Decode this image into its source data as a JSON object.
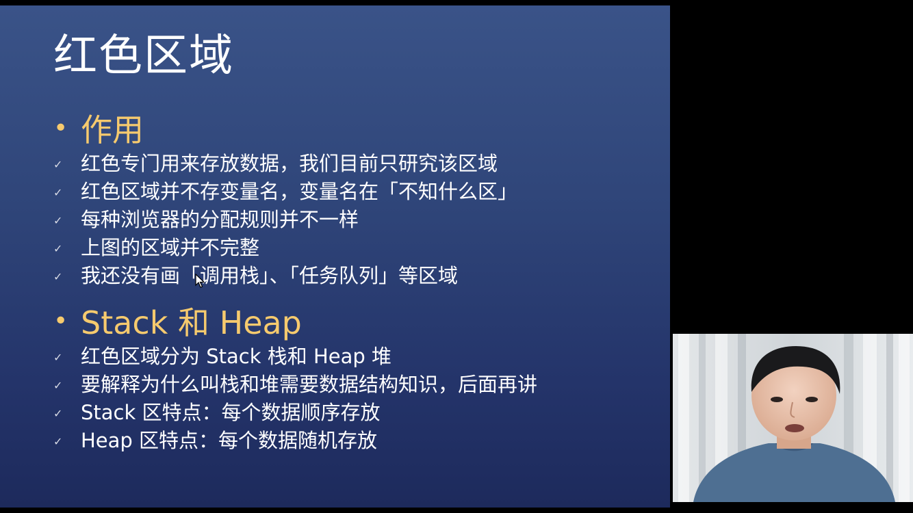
{
  "slide": {
    "title": "红色区域",
    "sections": [
      {
        "heading": "作用",
        "items": [
          "红色专门用来存放数据，我们目前只研究该区域",
          "红色区域并不存变量名，变量名在「不知什么区」",
          "每种浏览器的分配规则并不一样",
          "上图的区域并不完整",
          "我还没有画「调用栈」、「任务队列」等区域"
        ]
      },
      {
        "heading": "Stack 和 Heap",
        "items": [
          "红色区域分为 Stack 栈和 Heap 堆",
          "要解释为什么叫栈和堆需要数据结构知识，后面再讲",
          "Stack 区特点：每个数据顺序存放",
          "Heap 区特点：每个数据随机存放"
        ]
      }
    ]
  },
  "colors": {
    "heading": "#f6ca6e",
    "text": "#ffffff",
    "slide_top": "#3a5388",
    "slide_bottom": "#1d2a5c"
  },
  "icons": {
    "heading_bullet": "•",
    "item_bullet": "✓"
  }
}
